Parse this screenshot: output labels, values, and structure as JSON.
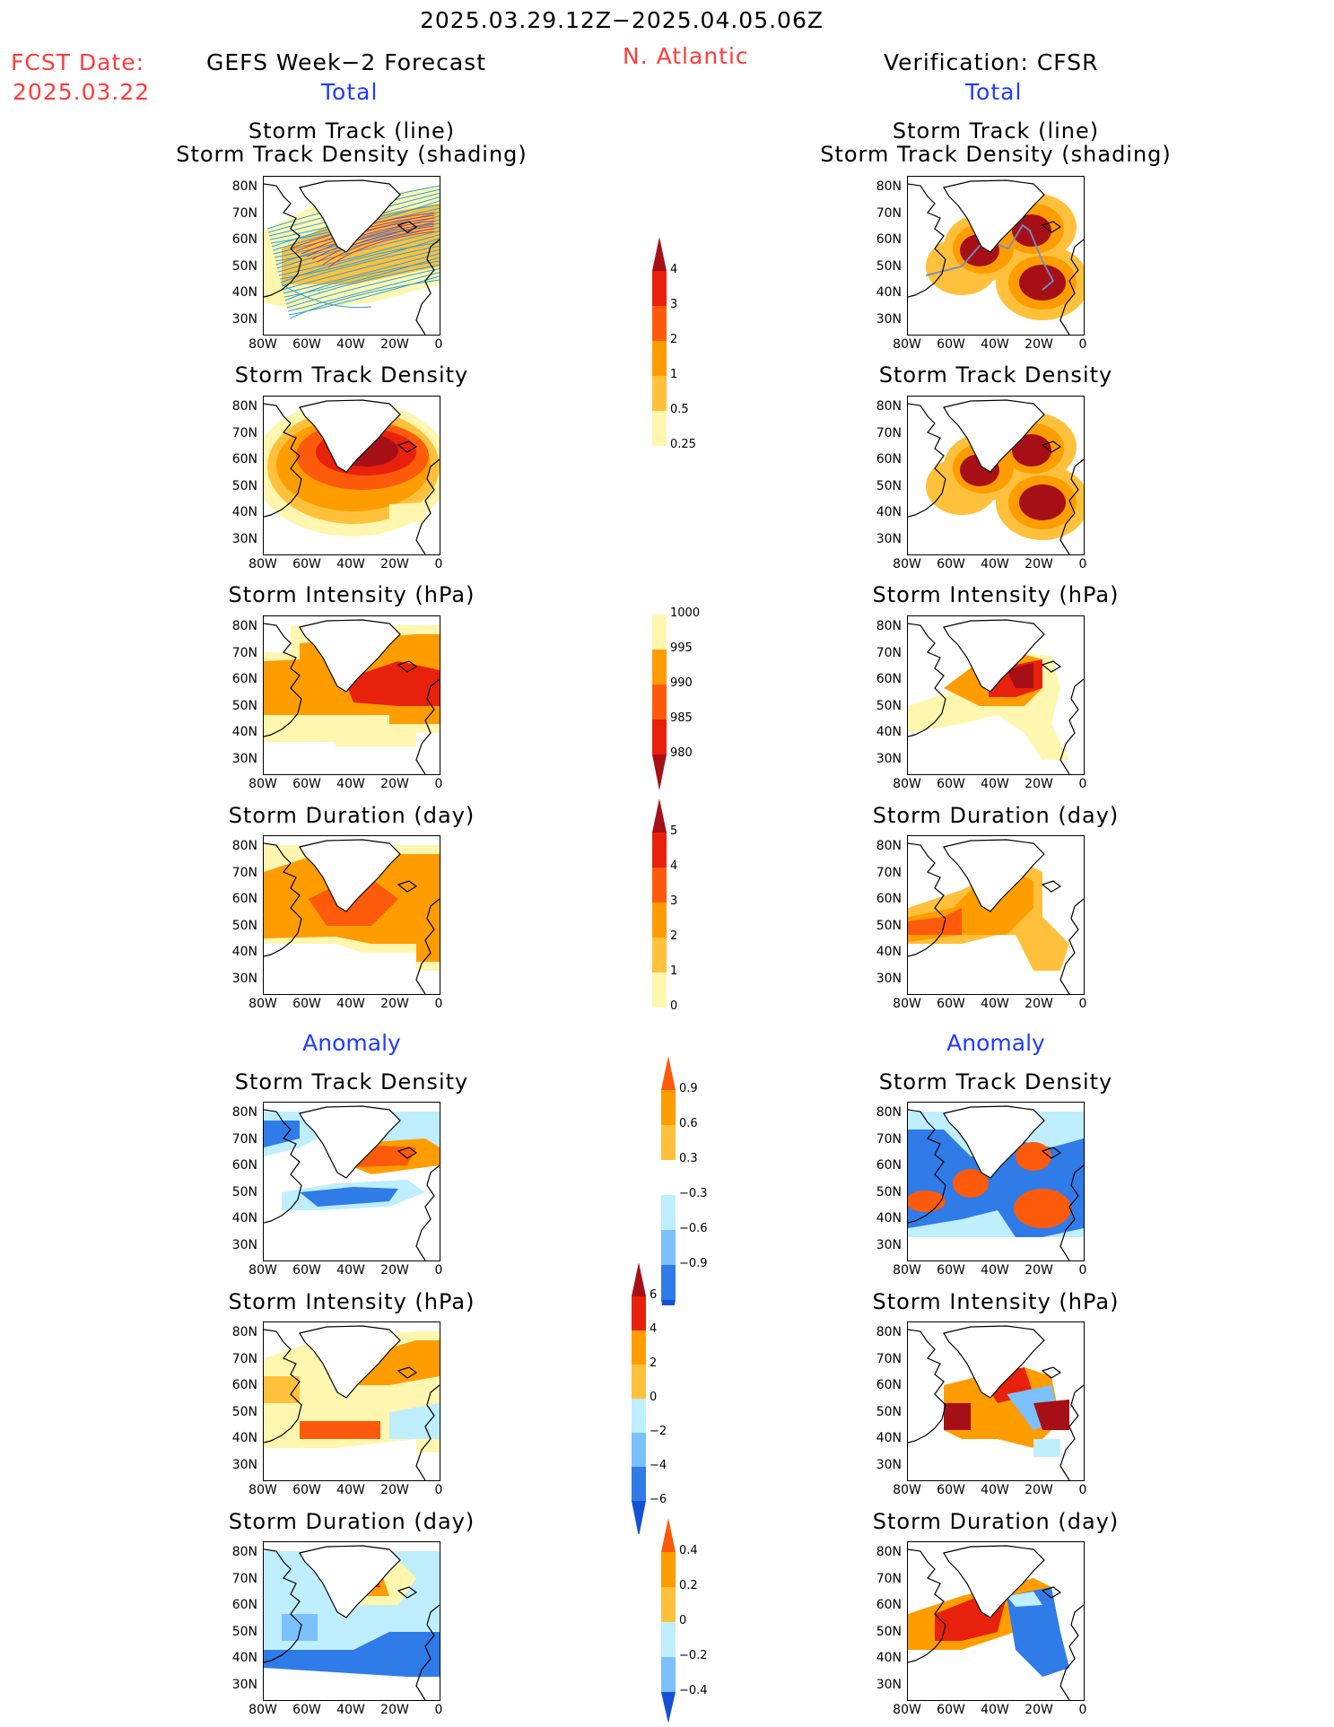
{
  "header": {
    "date_range": "2025.03.29.12Z−2025.04.05.06Z",
    "fcst_label": "FCST Date:",
    "fcst_date": "2025.03.22",
    "model_title": "GEFS Week−2 Forecast",
    "region": "N. Atlantic",
    "verification_title": "Verification: CFSR"
  },
  "sections": {
    "total_label": "Total",
    "anomaly_label": "Anomaly"
  },
  "panel_titles": {
    "track_line": "Storm Track (line)",
    "track_shading": "Storm Track Density (shading)",
    "density": "Storm Track Density",
    "intensity": "Storm Intensity (hPa)",
    "duration": "Storm Duration (day)"
  },
  "map_axes": {
    "lat_ticks": [
      "80N",
      "70N",
      "60N",
      "50N",
      "40N",
      "30N"
    ],
    "lon_ticks": [
      "80W",
      "60W",
      "40W",
      "20W",
      "0"
    ]
  },
  "colorbars": {
    "density_total": [
      "4",
      "3",
      "2",
      "1",
      "0.5",
      "0.25"
    ],
    "intensity_total": [
      "1000",
      "995",
      "990",
      "985",
      "980"
    ],
    "duration_total": [
      "5",
      "4",
      "3",
      "2",
      "1",
      "0"
    ],
    "density_anom": [
      "0.9",
      "0.6",
      "0.3",
      "−0.3",
      "−0.6",
      "−0.9"
    ],
    "intensity_anom": [
      "6",
      "4",
      "2",
      "0",
      "−2",
      "−4",
      "−6"
    ],
    "duration_anom": [
      "0.4",
      "0.2",
      "0",
      "−0.2",
      "−0.4"
    ]
  },
  "colors": {
    "title_red": "#ff3b3b",
    "section_blue": "#1f3bff",
    "deep_red": "#a50f15",
    "red": "#e8210c",
    "orange_red": "#fd5a0c",
    "orange": "#ff9d00",
    "light_orange": "#ffc13c",
    "pale_yellow": "#fff7b0",
    "light_blue": "#bfeeff",
    "sky_blue": "#7cc1ff",
    "blue": "#2f7be8",
    "dark_blue": "#1450d4"
  }
}
